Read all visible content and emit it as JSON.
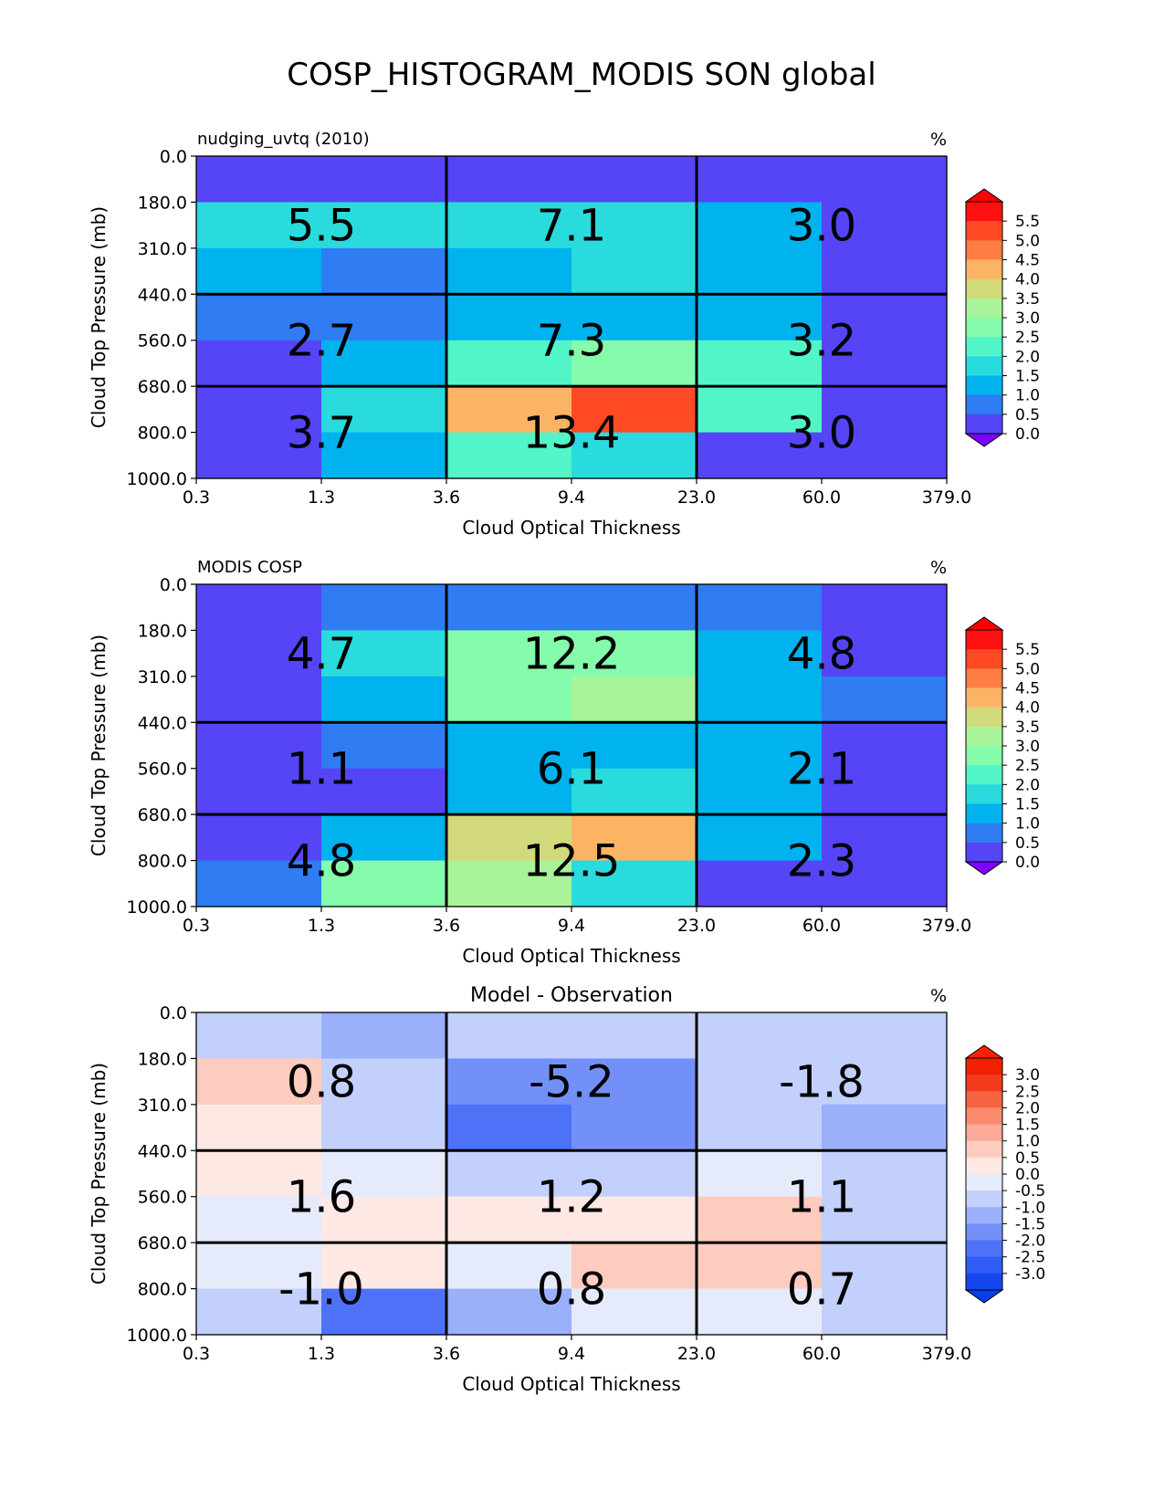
{
  "figure_title": "COSP_HISTOGRAM_MODIS SON global",
  "chart_data": [
    {
      "type": "heatmap",
      "left_title": "nudging_uvtq (2010)",
      "center_title": "",
      "units": "%",
      "xlabel": "Cloud Optical Thickness",
      "ylabel": "Cloud Top Pressure (mb)",
      "x_ticks": [
        "0.3",
        "1.3",
        "3.6",
        "9.4",
        "23.0",
        "60.0",
        "379.0"
      ],
      "y_ticks": [
        "0.0",
        "180.0",
        "310.0",
        "440.0",
        "560.0",
        "680.0",
        "800.0",
        "1000.0"
      ],
      "cells": [
        [
          0.2,
          0.2,
          0.2,
          0.2,
          0.2,
          0.2
        ],
        [
          1.9,
          1.9,
          1.9,
          1.9,
          1.3,
          0.2
        ],
        [
          1.3,
          0.8,
          1.3,
          1.9,
          1.3,
          0.2
        ],
        [
          0.8,
          0.8,
          1.3,
          1.3,
          1.3,
          0.2
        ],
        [
          0.2,
          1.3,
          2.3,
          2.8,
          2.3,
          0.2
        ],
        [
          0.2,
          1.9,
          4.2,
          5.3,
          2.3,
          0.2
        ],
        [
          0.2,
          1.3,
          2.3,
          1.9,
          0.2,
          0.2
        ]
      ],
      "box_values": [
        [
          "5.5",
          "7.1",
          "3.0"
        ],
        [
          "2.7",
          "7.3",
          "3.2"
        ],
        [
          "3.7",
          "13.4",
          "3.0"
        ]
      ],
      "colorbar_ticks": [
        "5.5",
        "5.0",
        "4.5",
        "4.0",
        "3.5",
        "3.0",
        "2.5",
        "2.0",
        "1.5",
        "1.0",
        "0.5",
        "0.0"
      ],
      "colorbar": {
        "levels": [
          0,
          0.5,
          1,
          1.5,
          2,
          2.5,
          3,
          3.5,
          4,
          4.5,
          5,
          5.5
        ],
        "colors": [
          "#5545f7",
          "#2f7cf3",
          "#00b2ee",
          "#29dbdd",
          "#52f5c8",
          "#85fcab",
          "#a9f49a",
          "#d1d97a",
          "#fbb464",
          "#ff7e43",
          "#ff4a25",
          "#ff1010"
        ],
        "under": "#7f00ff",
        "over": "#ff0000"
      }
    },
    {
      "type": "heatmap",
      "left_title": "MODIS COSP",
      "center_title": "",
      "units": "%",
      "xlabel": "Cloud Optical Thickness",
      "ylabel": "Cloud Top Pressure (mb)",
      "x_ticks": [
        "0.3",
        "1.3",
        "3.6",
        "9.4",
        "23.0",
        "60.0",
        "379.0"
      ],
      "y_ticks": [
        "0.0",
        "180.0",
        "310.0",
        "440.0",
        "560.0",
        "680.0",
        "800.0",
        "1000.0"
      ],
      "cells": [
        [
          0.2,
          0.8,
          0.8,
          0.8,
          0.8,
          0.2
        ],
        [
          0.2,
          1.9,
          2.8,
          2.8,
          1.3,
          0.2
        ],
        [
          0.2,
          1.3,
          2.8,
          3.2,
          1.3,
          0.8
        ],
        [
          0.2,
          0.8,
          1.3,
          1.3,
          1.3,
          0.2
        ],
        [
          0.2,
          0.2,
          1.3,
          1.9,
          1.3,
          0.2
        ],
        [
          0.2,
          1.3,
          3.7,
          4.2,
          1.3,
          0.2
        ],
        [
          0.8,
          2.8,
          3.2,
          1.9,
          0.2,
          0.2
        ]
      ],
      "box_values": [
        [
          "4.7",
          "12.2",
          "4.8"
        ],
        [
          "1.1",
          "6.1",
          "2.1"
        ],
        [
          "4.8",
          "12.5",
          "2.3"
        ]
      ],
      "colorbar_ticks": [
        "5.5",
        "5.0",
        "4.5",
        "4.0",
        "3.5",
        "3.0",
        "2.5",
        "2.0",
        "1.5",
        "1.0",
        "0.5",
        "0.0"
      ],
      "colorbar": {
        "levels": [
          0,
          0.5,
          1,
          1.5,
          2,
          2.5,
          3,
          3.5,
          4,
          4.5,
          5,
          5.5
        ],
        "colors": [
          "#5545f7",
          "#2f7cf3",
          "#00b2ee",
          "#29dbdd",
          "#52f5c8",
          "#85fcab",
          "#a9f49a",
          "#d1d97a",
          "#fbb464",
          "#ff7e43",
          "#ff4a25",
          "#ff1010"
        ],
        "under": "#7f00ff",
        "over": "#ff0000"
      }
    },
    {
      "type": "heatmap",
      "left_title": "",
      "center_title": "Model - Observation",
      "units": "%",
      "xlabel": "Cloud Optical Thickness",
      "ylabel": "Cloud Top Pressure (mb)",
      "x_ticks": [
        "0.3",
        "1.3",
        "3.6",
        "9.4",
        "23.0",
        "60.0",
        "379.0"
      ],
      "y_ticks": [
        "0.0",
        "180.0",
        "310.0",
        "440.0",
        "560.0",
        "680.0",
        "800.0",
        "1000.0"
      ],
      "cells": [
        [
          -0.2,
          -0.7,
          -0.2,
          -0.2,
          -0.2,
          -0.2
        ],
        [
          1.2,
          -0.2,
          -1.2,
          -1.2,
          -0.2,
          -0.2
        ],
        [
          0.7,
          -0.2,
          -1.7,
          -1.2,
          -0.2,
          -0.7
        ],
        [
          0.7,
          0.2,
          -0.2,
          -0.2,
          0.2,
          -0.2
        ],
        [
          0.2,
          0.7,
          0.7,
          0.7,
          1.2,
          -0.2
        ],
        [
          0.2,
          0.7,
          0.2,
          1.2,
          1.2,
          -0.2
        ],
        [
          -0.2,
          -1.7,
          -0.7,
          0.2,
          0.2,
          -0.2
        ]
      ],
      "box_values": [
        [
          "0.8",
          "-5.2",
          "-1.8"
        ],
        [
          "1.6",
          "1.2",
          "1.1"
        ],
        [
          "-1.0",
          "0.8",
          "0.7"
        ]
      ],
      "colorbar_ticks": [
        "3.0",
        "2.5",
        "2.0",
        "1.5",
        "1.0",
        "0.5",
        "0.0",
        "-0.5",
        "-1.0",
        "-1.5",
        "-2.0",
        "-2.5",
        "-3.0"
      ],
      "colorbar": {
        "levels": [
          -3,
          -2.5,
          -2,
          -1.5,
          -1,
          -0.5,
          0,
          0.5,
          1,
          1.5,
          2,
          2.5,
          3
        ],
        "colors": [
          "#1646f0",
          "#2e5cf5",
          "#4e72f7",
          "#7390f9",
          "#9bb0fa",
          "#c2d0fb",
          "#e6ebfb",
          "#fde8e4",
          "#fdccbe",
          "#fcaa98",
          "#fa8a6e",
          "#f76444",
          "#f33a1a",
          "#f02000"
        ],
        "under": "#0a3cf0",
        "over": "#ff2000"
      }
    }
  ]
}
